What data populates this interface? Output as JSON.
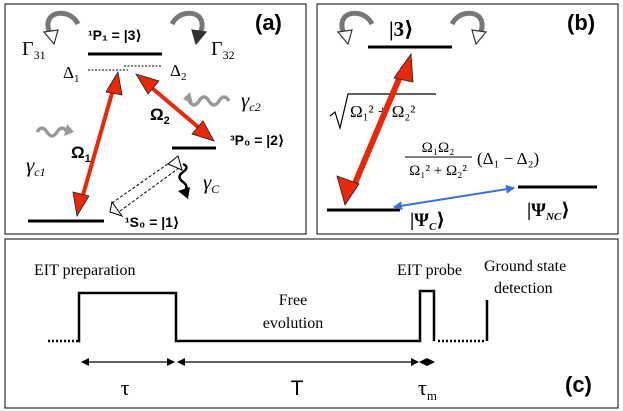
{
  "panel_a": {
    "label": "(a)",
    "decay_31": "Γ",
    "decay_31_sub": "31",
    "decay_32": "Γ",
    "decay_32_sub": "32",
    "detuning_1": "Δ",
    "detuning_1_sub": "1",
    "detuning_2": "Δ",
    "detuning_2_sub": "2",
    "level_1p1": "¹P₁ = |3⟩",
    "level_3p0": "³P₀ = |2⟩",
    "level_1s0": "¹S₀ = |1⟩",
    "rabi_1": "Ω",
    "rabi_1_sub": "1",
    "rabi_2": "Ω",
    "rabi_2_sub": "2",
    "gamma_c1": "γ",
    "gamma_c1_sub": "c1",
    "gamma_c2": "γ",
    "gamma_c2_sub": "c2",
    "gamma_c": "γ",
    "gamma_c_sub": "C"
  },
  "panel_b": {
    "label": "(b)",
    "level_3": "|3⟩",
    "rabi_sum": "Ω₁² + Ω₂²",
    "shift_num": "Ω₁Ω₂",
    "shift_den": "Ω₁² + Ω₂²",
    "shift_factor": "(Δ₁ − Δ₂)",
    "psi_c": "|Ψ",
    "psi_c_sub": "C",
    "psi_nc": "|Ψ",
    "psi_nc_sub": "NC"
  },
  "panel_c": {
    "label": "(c)",
    "eit_preparation": "EIT preparation",
    "free": "Free",
    "evolution": "evolution",
    "eit_probe": "EIT probe",
    "ground_state": "Ground state",
    "detection": "detection",
    "tau": "τ",
    "T": "T",
    "tau_m": "τ",
    "tau_m_sub": "m"
  },
  "colors": {
    "laser_arrow": "#e8280a",
    "coupling_arrow": "#3a72d8",
    "decay_arrow": "#888888",
    "frame": "#000000"
  }
}
